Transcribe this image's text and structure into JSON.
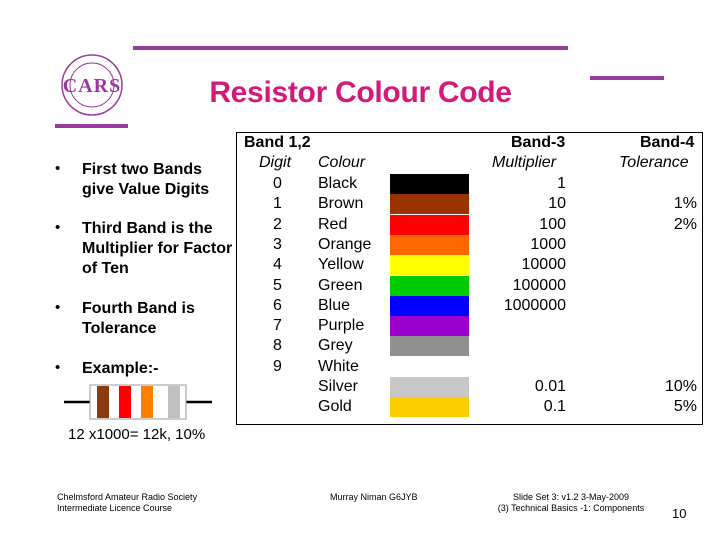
{
  "logo": {
    "text": "CARS"
  },
  "title": "Resistor Colour Code",
  "bullets": [
    {
      "marker": "•",
      "text": "First two Bands give Value Digits"
    },
    {
      "marker": "•",
      "text": "Third Band is the Multiplier for Factor of Ten"
    },
    {
      "marker": "•",
      "text": "Fourth Band is Tolerance"
    },
    {
      "marker": "•",
      "text": "Example:-"
    }
  ],
  "example": {
    "band_colors": [
      "#8B3A0F",
      "#ff0000",
      "#ff8000",
      "#c0c0c0"
    ],
    "caption": "12 x1000= 12k, 10%"
  },
  "table": {
    "headers": {
      "band12": "Band 1,2",
      "digit": "Digit",
      "colour": "Colour",
      "band3": "Band-3",
      "multiplier": "Multiplier",
      "band4": "Band-4",
      "tolerance": "Tolerance"
    },
    "rows": [
      {
        "digit": "0",
        "colour": "Black",
        "swatch": "#000000",
        "multiplier": "1",
        "tolerance": ""
      },
      {
        "digit": "1",
        "colour": "Brown",
        "swatch": "#993300",
        "multiplier": "10",
        "tolerance": "1%"
      },
      {
        "digit": "2",
        "colour": "Red",
        "swatch": "#ff0000",
        "multiplier": "100",
        "tolerance": "2%"
      },
      {
        "digit": "3",
        "colour": "Orange",
        "swatch": "#ff6600",
        "multiplier": "1000",
        "tolerance": ""
      },
      {
        "digit": "4",
        "colour": "Yellow",
        "swatch": "#ffff00",
        "multiplier": "10000",
        "tolerance": ""
      },
      {
        "digit": "5",
        "colour": "Green",
        "swatch": "#00cc00",
        "multiplier": "100000",
        "tolerance": ""
      },
      {
        "digit": "6",
        "colour": "Blue",
        "swatch": "#0000ff",
        "multiplier": "1000000",
        "tolerance": ""
      },
      {
        "digit": "7",
        "colour": "Purple",
        "swatch": "#9900cc",
        "multiplier": "",
        "tolerance": ""
      },
      {
        "digit": "8",
        "colour": "Grey",
        "swatch": "#909090",
        "multiplier": "",
        "tolerance": ""
      },
      {
        "digit": "9",
        "colour": "White",
        "swatch": "#ffffff",
        "multiplier": "",
        "tolerance": ""
      },
      {
        "digit": "",
        "colour": "Silver",
        "swatch": "#c8c8c8",
        "multiplier": "0.01",
        "tolerance": "10%"
      },
      {
        "digit": "",
        "colour": "Gold",
        "swatch": "#ffcc00",
        "multiplier": "0.1",
        "tolerance": "5%"
      }
    ]
  },
  "footer": {
    "left_line1": "Chelmsford Amateur Radio Society",
    "left_line2": "Intermediate Licence Course",
    "author": "Murray Niman G6JYB",
    "right_line1": "Slide Set 3:  v1.2  3-May-2009",
    "right_line2": "(3) Technical Basics -1: Components",
    "page_number": "10"
  },
  "colors": {
    "accent_bar": "#9b3a9e",
    "title": "#d4197a"
  }
}
